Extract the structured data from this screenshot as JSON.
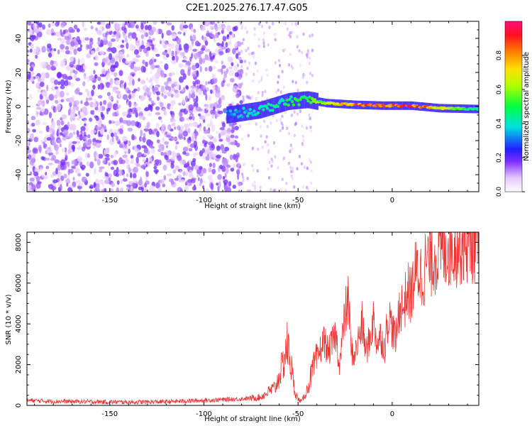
{
  "title": "C2E1.2025.276.17.47.G05",
  "chart_data": [
    {
      "type": "heatmap",
      "xlabel": "Height of straight line (km)",
      "ylabel": "Frequency (Hz)",
      "xlim": [
        -194,
        46
      ],
      "ylim": [
        -50,
        50
      ],
      "xticks": [
        -150,
        -100,
        -50,
        0
      ],
      "xtick_labels": [
        "-150",
        "-100",
        "-50",
        "0"
      ],
      "yticks": [
        -40,
        -20,
        0,
        20,
        40
      ],
      "ytick_labels": [
        "-40",
        "-20",
        "0",
        "20",
        "40"
      ],
      "colorbar": {
        "label": "Normalized spectral amplitude",
        "range": [
          0,
          1
        ],
        "ticks": [
          0,
          0.2,
          0.4,
          0.6,
          0.8
        ],
        "tick_labels": [
          "0.0",
          "0.2",
          "0.4",
          "0.6",
          "0.8"
        ]
      },
      "signal_track": {
        "description": "carrier line",
        "x": [
          -88,
          -70,
          -55,
          -45,
          -35,
          -20,
          -5,
          10,
          25,
          46
        ],
        "frequency": [
          -5,
          -2,
          3,
          4,
          2,
          1,
          0.5,
          0.5,
          -1,
          -1.5
        ],
        "amplitude": [
          0.35,
          0.45,
          0.5,
          0.55,
          0.7,
          0.85,
          0.95,
          0.95,
          0.75,
          0.45
        ]
      }
    },
    {
      "type": "line",
      "xlabel": "Height of straight line (km)",
      "ylabel": "SNR (10 * v/v)",
      "xlim": [
        -194,
        46
      ],
      "ylim": [
        0,
        8500
      ],
      "xticks": [
        -150,
        -100,
        -50,
        0
      ],
      "xtick_labels": [
        "-150",
        "-100",
        "-50",
        "0"
      ],
      "yticks": [
        0,
        2000,
        4000,
        6000,
        8000
      ],
      "ytick_labels": [
        "0",
        "2000",
        "4000",
        "6000",
        "8000"
      ],
      "series": [
        {
          "name": "SNR",
          "color": "#ee3333",
          "x": [
            -194,
            -180,
            -160,
            -140,
            -120,
            -100,
            -90,
            -80,
            -70,
            -62,
            -58,
            -56,
            -54,
            -52,
            -50,
            -48,
            -45,
            -43,
            -40,
            -38,
            -36,
            -34,
            -32,
            -30,
            -28,
            -25,
            -23,
            -22,
            -20,
            -18,
            -16,
            -14,
            -12,
            -10,
            -8,
            -6,
            -4,
            -2,
            0,
            2,
            4,
            6,
            8,
            10,
            12,
            14,
            16,
            18,
            20,
            22,
            24,
            26,
            28,
            30,
            32,
            34,
            36,
            38,
            40,
            42,
            44,
            46
          ],
          "y": [
            250,
            200,
            180,
            160,
            180,
            250,
            280,
            320,
            400,
            900,
            2000,
            3000,
            2200,
            800,
            300,
            200,
            800,
            1500,
            2200,
            2800,
            3200,
            2600,
            3000,
            3500,
            2000,
            4500,
            5200,
            2800,
            2400,
            3200,
            4000,
            2600,
            3200,
            4200,
            3000,
            3400,
            2800,
            4500,
            3800,
            3200,
            5000,
            4800,
            5600,
            5400,
            6400,
            6600,
            6300,
            7000,
            7100,
            7300,
            7500,
            7600,
            7700,
            7800,
            7900,
            7900,
            8000,
            8000,
            8100,
            8100,
            8150,
            8200
          ]
        }
      ]
    }
  ]
}
